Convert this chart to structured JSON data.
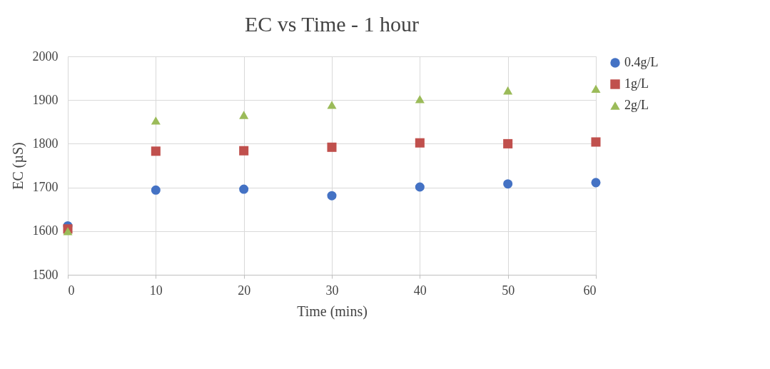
{
  "chart_data": {
    "type": "scatter",
    "title": "EC vs Time - 1 hour",
    "xlabel": "Time (mins)",
    "ylabel": "EC (µS)",
    "x": [
      0,
      10,
      20,
      30,
      40,
      50,
      60
    ],
    "series": [
      {
        "name": "0.4g/L",
        "color": "#4472c4",
        "marker": "circle",
        "values": [
          1612,
          1694,
          1696,
          1681,
          1701,
          1708,
          1711
        ]
      },
      {
        "name": "1g/L",
        "color": "#c0504d",
        "marker": "square",
        "values": [
          1605,
          1783,
          1784,
          1792,
          1802,
          1800,
          1804
        ]
      },
      {
        "name": "2g/L",
        "color": "#9bbb59",
        "marker": "triangle",
        "values": [
          1600,
          1853,
          1866,
          1889,
          1902,
          1922,
          1926
        ]
      }
    ],
    "xlim": [
      0,
      60
    ],
    "xticks": [
      0,
      10,
      20,
      30,
      40,
      50,
      60
    ],
    "ylim": [
      1500,
      2000
    ],
    "yticks": [
      1500,
      1600,
      1700,
      1800,
      1900,
      2000
    ],
    "grid": true,
    "legend": "right"
  }
}
